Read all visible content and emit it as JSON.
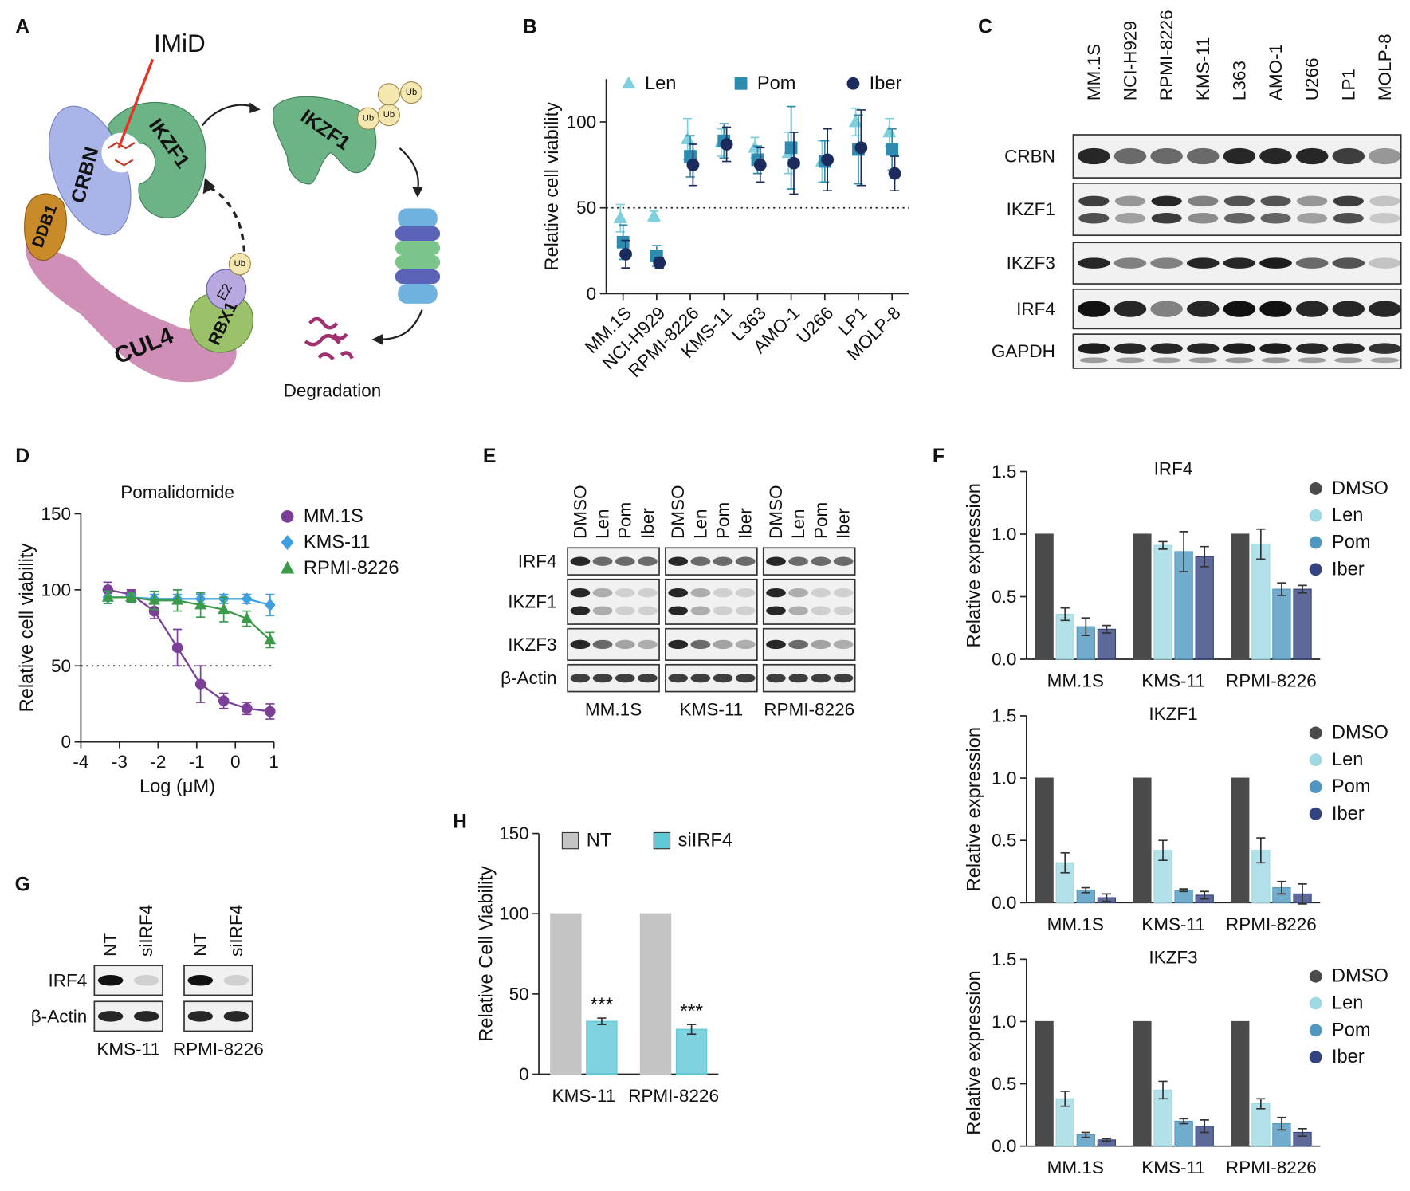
{
  "panels": [
    "A",
    "B",
    "C",
    "D",
    "E",
    "F",
    "G",
    "H"
  ],
  "diagram": {
    "drug": "IMiD",
    "crbn": "CRBN",
    "ikzf1": "IKZF1",
    "ddb1": "DDB1",
    "cul4": "CUL4",
    "rbx1": "RBX1",
    "e2": "E2",
    "ub": [
      "Ub",
      "Ub",
      "Ub",
      "Ub"
    ],
    "target": "IKZF1",
    "outcome": "Degradation"
  },
  "blot_C": {
    "columns": [
      "MM.1S",
      "NCI-H929",
      "RPMI-8226",
      "KMS-11",
      "L363",
      "AMO-1",
      "U266",
      "LP1",
      "MOLP-8"
    ],
    "rows": [
      "CRBN",
      "IKZF1",
      "IKZF3",
      "IRF4",
      "GAPDH"
    ]
  },
  "blot_E": {
    "groups": [
      {
        "name": "MM.1S",
        "lanes": [
          "DMSO",
          "Len",
          "Pom",
          "Iber"
        ]
      },
      {
        "name": "KMS-11",
        "lanes": [
          "DMSO",
          "Len",
          "Pom",
          "Iber"
        ]
      },
      {
        "name": "RPMI-8226",
        "lanes": [
          "DMSO",
          "Len",
          "Pom",
          "Iber"
        ]
      }
    ],
    "rows": [
      "IRF4",
      "IKZF1",
      "IKZF3",
      "β-Actin"
    ]
  },
  "blot_G": {
    "groups": [
      {
        "name": "KMS-11",
        "lanes": [
          "NT",
          "siIRF4"
        ]
      },
      {
        "name": "RPMI-8226",
        "lanes": [
          "NT",
          "siIRF4"
        ]
      }
    ],
    "rows": [
      "IRF4",
      "β-Actin"
    ]
  },
  "chart_data": [
    {
      "type": "dot",
      "ylabel": "Relative cell viability",
      "categories": [
        "MM.1S",
        "NCI-H929",
        "RPMI-8226",
        "KMS-11",
        "L363",
        "AMO-1",
        "U266",
        "LP1",
        "MOLP-8"
      ],
      "series": [
        {
          "name": "Len",
          "color": "#7fd0dc",
          "marker": "triangle",
          "values": [
            44,
            45,
            90,
            88,
            85,
            82,
            77,
            100,
            94
          ],
          "errors": [
            8,
            3,
            12,
            8,
            6,
            12,
            12,
            8,
            8
          ]
        },
        {
          "name": "Pom",
          "color": "#2e8bb0",
          "marker": "square",
          "values": [
            30,
            22,
            80,
            89,
            78,
            85,
            77,
            84,
            84
          ],
          "errors": [
            10,
            6,
            12,
            10,
            8,
            24,
            12,
            20,
            12
          ]
        },
        {
          "name": "Iber",
          "color": "#1c2b5e",
          "marker": "circle",
          "values": [
            23,
            18,
            75,
            87,
            75,
            76,
            78,
            85,
            70
          ],
          "errors": [
            8,
            3,
            12,
            10,
            10,
            18,
            18,
            22,
            10
          ]
        }
      ],
      "ylim": [
        0,
        125
      ],
      "yticks": [
        0,
        50,
        100
      ],
      "hline": 50,
      "legend": "top"
    },
    {
      "type": "line",
      "title": "Pomalidomide",
      "xlabel": "Log (μM)",
      "ylabel": "Relative cell viability",
      "x": [
        -3.3,
        -2.7,
        -2.1,
        -1.5,
        -0.9,
        -0.3,
        0.3,
        0.9
      ],
      "series": [
        {
          "name": "MM.1S",
          "color": "#7b3f98",
          "marker": "circle",
          "values": [
            100,
            97,
            86,
            62,
            38,
            27,
            22,
            20
          ],
          "errors": [
            5,
            3,
            5,
            12,
            12,
            5,
            4,
            5
          ]
        },
        {
          "name": "KMS-11",
          "color": "#3ea0e0",
          "marker": "diamond",
          "values": [
            95,
            95,
            94,
            94,
            94,
            94,
            94,
            90
          ],
          "errors": [
            4,
            2,
            3,
            3,
            3,
            3,
            3,
            7
          ]
        },
        {
          "name": "RPMI-8226",
          "color": "#3a9a4a",
          "marker": "triangle",
          "values": [
            95,
            95,
            93,
            93,
            90,
            87,
            81,
            67
          ],
          "errors": [
            4,
            3,
            6,
            7,
            8,
            8,
            5,
            5
          ]
        }
      ],
      "xlim": [
        -4,
        1
      ],
      "xticks": [
        -4,
        -3,
        -2,
        -1,
        0,
        1
      ],
      "ylim": [
        0,
        150
      ],
      "yticks": [
        0,
        50,
        100,
        150
      ],
      "hline": 50,
      "legend": "right"
    },
    {
      "type": "bar",
      "title": "IRF4",
      "ylabel": "Relative expression",
      "categories": [
        "MM.1S",
        "KMS-11",
        "RPMI-8226"
      ],
      "series": [
        {
          "name": "DMSO",
          "color": "#4a4a4a",
          "marker": "circle",
          "values": [
            1,
            1,
            1
          ],
          "errors": [
            0,
            0,
            0
          ]
        },
        {
          "name": "Len",
          "color": "#9fd9e4",
          "marker": "circle",
          "values": [
            0.36,
            0.91,
            0.92
          ],
          "errors": [
            0.05,
            0.03,
            0.12
          ]
        },
        {
          "name": "Pom",
          "color": "#4f97c0",
          "marker": "circle",
          "values": [
            0.26,
            0.86,
            0.56
          ],
          "errors": [
            0.07,
            0.16,
            0.05
          ]
        },
        {
          "name": "Iber",
          "color": "#33437f",
          "marker": "circle",
          "values": [
            0.24,
            0.82,
            0.56
          ],
          "errors": [
            0.03,
            0.08,
            0.03
          ]
        }
      ],
      "ylim": [
        0,
        1.5
      ],
      "yticks": [
        {
          "value": 0,
          "label": "0.0"
        },
        0.5,
        {
          "value": 1,
          "label": "1.0"
        },
        1.5
      ],
      "legend": "right"
    },
    {
      "type": "bar",
      "title": "IKZF1",
      "ylabel": "Relative expression",
      "categories": [
        "MM.1S",
        "KMS-11",
        "RPMI-8226"
      ],
      "series": [
        {
          "name": "DMSO",
          "color": "#4a4a4a",
          "marker": "circle",
          "values": [
            1,
            1,
            1
          ],
          "errors": [
            0,
            0,
            0
          ]
        },
        {
          "name": "Len",
          "color": "#9fd9e4",
          "marker": "circle",
          "values": [
            0.32,
            0.42,
            0.42
          ],
          "errors": [
            0.08,
            0.08,
            0.1
          ]
        },
        {
          "name": "Pom",
          "color": "#4f97c0",
          "marker": "circle",
          "values": [
            0.1,
            0.1,
            0.12
          ],
          "errors": [
            0.02,
            0.01,
            0.05
          ]
        },
        {
          "name": "Iber",
          "color": "#33437f",
          "marker": "circle",
          "values": [
            0.04,
            0.06,
            0.07
          ],
          "errors": [
            0.03,
            0.03,
            0.08
          ]
        }
      ],
      "ylim": [
        0,
        1.5
      ],
      "yticks": [
        {
          "value": 0,
          "label": "0.0"
        },
        0.5,
        {
          "value": 1,
          "label": "1.0"
        },
        1.5
      ],
      "legend": "right"
    },
    {
      "type": "bar",
      "title": "IKZF3",
      "ylabel": "Relative expression",
      "categories": [
        "MM.1S",
        "KMS-11",
        "RPMI-8226"
      ],
      "series": [
        {
          "name": "DMSO",
          "color": "#4a4a4a",
          "marker": "circle",
          "values": [
            1,
            1,
            1
          ],
          "errors": [
            0,
            0,
            0
          ]
        },
        {
          "name": "Len",
          "color": "#9fd9e4",
          "marker": "circle",
          "values": [
            0.38,
            0.45,
            0.34
          ],
          "errors": [
            0.06,
            0.07,
            0.04
          ]
        },
        {
          "name": "Pom",
          "color": "#4f97c0",
          "marker": "circle",
          "values": [
            0.09,
            0.2,
            0.18
          ],
          "errors": [
            0.02,
            0.02,
            0.05
          ]
        },
        {
          "name": "Iber",
          "color": "#33437f",
          "marker": "circle",
          "values": [
            0.05,
            0.16,
            0.11
          ],
          "errors": [
            0.01,
            0.05,
            0.03
          ]
        }
      ],
      "ylim": [
        0,
        1.5
      ],
      "yticks": [
        {
          "value": 0,
          "label": "0.0"
        },
        0.5,
        {
          "value": 1,
          "label": "1.0"
        },
        1.5
      ],
      "legend": "right"
    },
    {
      "type": "bar",
      "ylabel": "Relative Cell Viability",
      "categories": [
        "KMS-11",
        "RPMI-8226"
      ],
      "series": [
        {
          "name": "NT",
          "color": "#c4c4c4",
          "values": [
            100,
            100
          ],
          "errors": [
            0,
            0
          ]
        },
        {
          "name": "siIRF4",
          "color": "#5ec8d6",
          "values": [
            33,
            28
          ],
          "errors": [
            2,
            3
          ],
          "annotations": [
            "***",
            "***"
          ]
        }
      ],
      "ylim": [
        0,
        150
      ],
      "yticks": [
        0,
        50,
        100,
        150
      ],
      "legend": "top"
    }
  ]
}
